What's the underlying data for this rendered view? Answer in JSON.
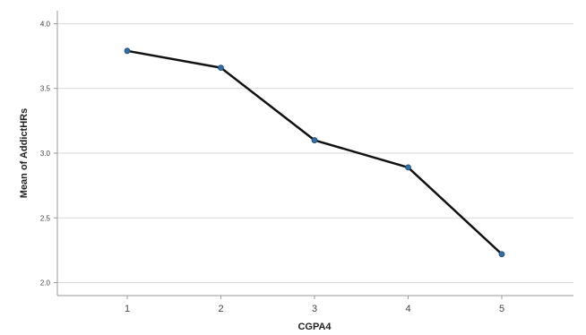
{
  "chart_data": {
    "type": "line",
    "title": "",
    "xlabel": "CGPA4",
    "ylabel": "Mean of AddictHRs",
    "categories": [
      "1",
      "2",
      "3",
      "4",
      "5"
    ],
    "values": [
      3.79,
      3.66,
      3.1,
      2.89,
      2.22
    ],
    "ylim": [
      1.9,
      4.1
    ],
    "yticks": [
      "4.0",
      "3.5",
      "3.0",
      "2.5",
      "2.0"
    ],
    "ytick_values": [
      4.0,
      3.5,
      3.0,
      2.5,
      2.0
    ],
    "grid": true,
    "legend": "none",
    "colors": {
      "line": "#111111",
      "marker": "#2e6fa7",
      "grid": "#d9d9d9",
      "axis": "#9a9a9a"
    }
  }
}
